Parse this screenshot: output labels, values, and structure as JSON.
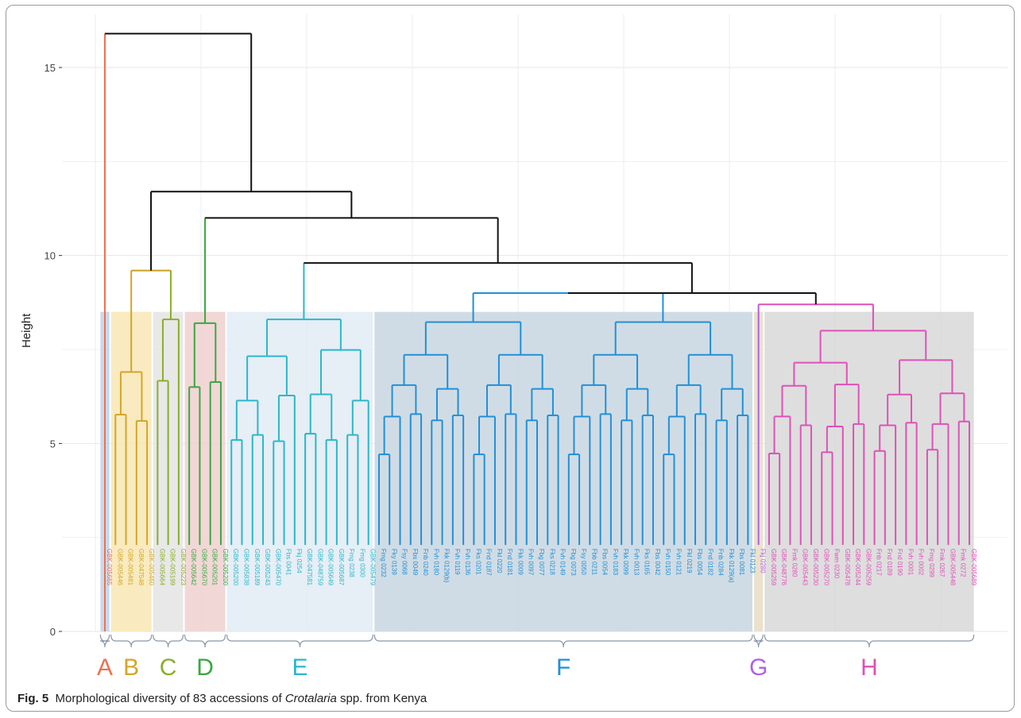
{
  "caption": {
    "label": "Fig. 5",
    "text_before": "Morphological diversity of 83 accessions of ",
    "italic": "Crotalaria",
    "text_after": " spp. from Kenya"
  },
  "chart_data": {
    "type": "dendrogram",
    "ylabel": "Height",
    "ylim": [
      0,
      16
    ],
    "yticks": [
      0,
      5,
      10,
      15
    ],
    "grid": true,
    "leaf_count": 83,
    "clusters": [
      {
        "name": "A",
        "color": "#f07050",
        "box_color": "#bcd4ea",
        "leaves": [
          "GBK-005665"
        ]
      },
      {
        "name": "B",
        "color": "#d4a528",
        "box_color": "#f8e8b4",
        "leaves": [
          "GBK-005446",
          "GBK-005481",
          "GBK-047548",
          "GBK-005460"
        ]
      },
      {
        "name": "C",
        "color": "#8aae28",
        "box_color": "#e4e4e4",
        "leaves": [
          "GBK-005664",
          "GBK-005199",
          "GBK-005223"
        ]
      },
      {
        "name": "D",
        "color": "#3aa840",
        "box_color": "#f0d0d0",
        "leaves": [
          "GBK-005642",
          "GBK-005670",
          "GBK-005201",
          "GBK-005200"
        ]
      },
      {
        "name": "E",
        "color": "#2ab8c8",
        "box_color": "#e2ebf5",
        "leaves": [
          "GBK-005200",
          "GBK-005838",
          "GBK-005189",
          "GBK-005243",
          "GBK-005470",
          "Fbs 0041",
          "Fkj 0254",
          "GBK-047581",
          "GBK-048759",
          "GBK-005649",
          "GBK-005687",
          "Fmg 0238",
          "Fmg 0300",
          "GBK-005479"
        ]
      },
      {
        "name": "F",
        "color": "#2090d8",
        "box_color": "#c8d6e0",
        "leaves": [
          "Fmg 0232",
          "Fky 0139",
          "Fsy 0068",
          "Fbs 0049",
          "Fnb 0240",
          "Fvh 0180",
          "Fkk 0129(b)",
          "Fvh 0119",
          "Fvh 0136",
          "Fks 0201",
          "Fnd 0187",
          "Fkl 0220",
          "Fnd 0181",
          "Fkk 0009",
          "Fvh 0097",
          "Fbg 0077",
          "Fks 0218",
          "Fvh 0149",
          "Fbg 0073",
          "Fsy 0050",
          "Fbb 0211",
          "Fbs 0054",
          "Fvh 0183",
          "Fkk 0099",
          "Fvh 0013",
          "Fks 0165",
          "Fbs 0042",
          "Fvh 0150",
          "Fvh 0121",
          "Fkl 0219",
          "Fbs 0054",
          "Fnd 0182",
          "Fnb 0284",
          "Fkk 0129(a)",
          "Fbs 0081",
          "Fkl 0123"
        ]
      },
      {
        "name": "G",
        "color": "#b060e8",
        "box_color": "#e8dcc4",
        "leaves": [
          "Fkj 0280"
        ]
      },
      {
        "name": "H",
        "color": "#e050b8",
        "box_color": "#d8d8d8",
        "leaves": [
          "GBK-005259",
          "GBK-048776",
          "Fmk 0280",
          "GBK-005443",
          "GBK-005230",
          "GBK-005270",
          "Fwm 0230",
          "GBK-005478",
          "GBK-005244",
          "GBK-005259",
          "Fnb 0217",
          "Fnd 0189",
          "Fnd 0190",
          "Fvh 0001",
          "Fvh 0002",
          "Fmg 0299",
          "Fmk 0267",
          "GBK-005448",
          "Fmk 0272",
          "GBK-005689"
        ]
      }
    ],
    "merges_above_clusters": [
      {
        "joins": [
          "A",
          "rest"
        ],
        "height": 15.9
      },
      {
        "joins": [
          "B+C",
          "D+E+F+G+H"
        ],
        "height": 11.7
      },
      {
        "joins": [
          "B",
          "C"
        ],
        "height": 9.6
      },
      {
        "joins": [
          "D",
          "E+F+G+H"
        ],
        "height": 11.0
      },
      {
        "joins": [
          "E",
          "F+G+H"
        ],
        "height": 9.8
      },
      {
        "joins": [
          "F",
          "G+H"
        ],
        "height": 9.0
      },
      {
        "joins": [
          "G",
          "H"
        ],
        "height": 8.7
      }
    ],
    "cluster_root_heights": {
      "B": 6.9,
      "C": 8.3,
      "D": 8.2,
      "E": 8.3,
      "F": 9.0,
      "H": 8.0
    }
  }
}
